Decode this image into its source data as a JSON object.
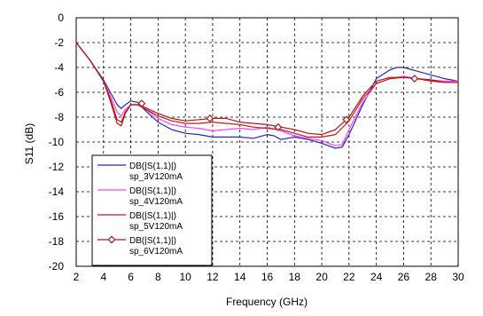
{
  "chart_data": {
    "type": "line",
    "title": "",
    "xlabel": "Frequency (GHz)",
    "ylabel": "S11 (dB)",
    "xlim": [
      2,
      30
    ],
    "ylim": [
      -20,
      0
    ],
    "x_ticks": [
      2,
      4,
      6,
      8,
      10,
      12,
      14,
      16,
      18,
      20,
      22,
      24,
      26,
      28,
      30
    ],
    "y_ticks": [
      0,
      -2,
      -4,
      -6,
      -8,
      -10,
      -12,
      -14,
      -16,
      -18,
      -20
    ],
    "grid": "dashed",
    "legend_position": "lower-left",
    "series": [
      {
        "name_line1": "DB(|S(1,1)|)",
        "name_line2": "sp_3V120mA",
        "color": "#2424c8",
        "marker": "none",
        "x": [
          2,
          3,
          4,
          4.5,
          5,
          5.3,
          5.6,
          6,
          6.5,
          7,
          8,
          9,
          10,
          11,
          12,
          13,
          14,
          15,
          16,
          16.5,
          17,
          18,
          19,
          20,
          20.5,
          21,
          21.5,
          22,
          23,
          24,
          25,
          25.5,
          26,
          27,
          28,
          29,
          30
        ],
        "y": [
          -2,
          -3.4,
          -5.0,
          -6.0,
          -7.0,
          -7.3,
          -7.0,
          -6.7,
          -6.8,
          -7.4,
          -8.4,
          -9.0,
          -9.3,
          -9.4,
          -9.6,
          -9.6,
          -9.6,
          -9.7,
          -9.4,
          -9.5,
          -9.8,
          -9.6,
          -9.8,
          -10.1,
          -10.3,
          -10.5,
          -10.4,
          -9.4,
          -7.0,
          -4.9,
          -4.2,
          -4.0,
          -4.0,
          -4.3,
          -4.6,
          -4.9,
          -5.1
        ]
      },
      {
        "name_line1": "DB(|S(1,1)|)",
        "name_line2": "sp_4V120mA",
        "color": "#ff40ff",
        "marker": "none",
        "x": [
          2,
          3,
          4,
          4.5,
          5,
          5.3,
          5.6,
          6,
          6.5,
          7,
          8,
          9,
          10,
          11,
          12,
          13,
          14,
          15,
          16,
          17,
          18,
          19,
          20,
          21,
          21.5,
          22,
          23,
          24,
          25,
          26,
          27,
          28,
          29,
          30
        ],
        "y": [
          -2,
          -3.4,
          -5.1,
          -6.3,
          -7.6,
          -7.9,
          -7.4,
          -7.0,
          -7.0,
          -7.3,
          -8.1,
          -8.6,
          -8.8,
          -8.9,
          -9.1,
          -9.0,
          -8.9,
          -9.0,
          -8.8,
          -9.1,
          -9.5,
          -9.7,
          -9.9,
          -10.3,
          -10.2,
          -9.0,
          -6.8,
          -5.3,
          -4.9,
          -4.7,
          -4.9,
          -5.0,
          -5.1,
          -5.1
        ]
      },
      {
        "name_line1": "DB(|S(1,1)|)",
        "name_line2": "sp_5V120mA",
        "color": "#c81818",
        "marker": "none",
        "x": [
          2,
          3,
          4,
          4.5,
          5,
          5.3,
          5.6,
          6,
          6.5,
          7,
          8,
          9,
          10,
          11,
          12,
          13,
          14,
          15,
          16,
          17,
          18,
          19,
          20,
          21,
          22,
          23,
          24,
          25,
          26,
          27,
          28,
          29,
          30
        ],
        "y": [
          -2,
          -3.4,
          -5.1,
          -6.5,
          -8.2,
          -8.4,
          -7.6,
          -7.0,
          -7.0,
          -7.3,
          -7.9,
          -8.3,
          -8.5,
          -8.5,
          -8.4,
          -8.5,
          -8.6,
          -8.8,
          -8.9,
          -9.0,
          -9.3,
          -9.6,
          -9.6,
          -9.4,
          -8.3,
          -6.5,
          -5.3,
          -4.9,
          -4.8,
          -4.9,
          -5.1,
          -5.2,
          -5.2
        ]
      },
      {
        "name_line1": "DB(|S(1,1)|)",
        "name_line2": "sp_6V120mA",
        "color": "#b01818",
        "marker": "diamond",
        "x": [
          2,
          3,
          4,
          4.5,
          5,
          5.3,
          5.6,
          6,
          6.5,
          7,
          8,
          9,
          10,
          11,
          12,
          13,
          14,
          15,
          16,
          17,
          18,
          19,
          20,
          21,
          22,
          23,
          24,
          25,
          26,
          27,
          28,
          29,
          30
        ],
        "y": [
          -2,
          -3.4,
          -5.1,
          -6.7,
          -8.5,
          -8.7,
          -7.7,
          -7.0,
          -7.0,
          -7.2,
          -7.7,
          -8.1,
          -8.3,
          -8.2,
          -8.1,
          -8.1,
          -8.4,
          -8.5,
          -8.6,
          -8.8,
          -9.0,
          -9.3,
          -9.4,
          -9.0,
          -8.0,
          -6.3,
          -5.1,
          -4.8,
          -4.8,
          -4.9,
          -5.0,
          -5.2,
          -5.2
        ],
        "marker_x": [
          6.8,
          11.8,
          16.8,
          21.8,
          26.8
        ],
        "marker_y": [
          -6.9,
          -8.1,
          -8.8,
          -8.2,
          -4.9
        ]
      }
    ]
  }
}
